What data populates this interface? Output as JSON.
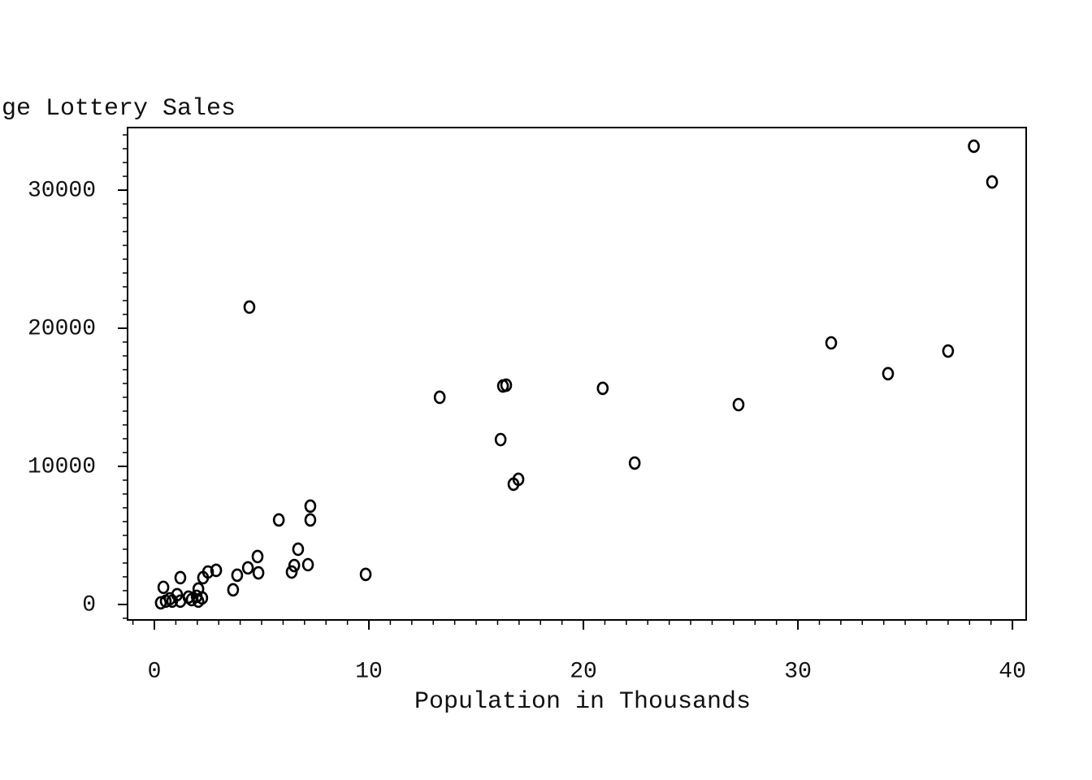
{
  "chart_data": {
    "type": "scatter",
    "y_label": "ge Lottery Sales",
    "x_label": "Population in Thousands",
    "x": [
      38.2,
      39.05,
      4.43,
      31.55,
      37.0,
      34.2,
      20.9,
      13.3,
      16.25,
      16.4,
      27.23,
      16.14,
      22.39,
      16.97,
      16.74,
      7.27,
      5.8,
      7.27,
      6.7,
      4.81,
      4.36,
      7.16,
      6.52,
      6.4,
      4.85,
      9.85,
      2.88,
      2.5,
      3.86,
      2.27,
      1.21,
      3.67,
      0.42,
      2.05,
      1.06,
      1.97,
      2.23,
      1.59,
      1.74,
      1.21,
      0.83,
      0.53,
      0.3,
      2.05,
      0.72
    ],
    "values": [
      33180,
      30590,
      21530,
      18940,
      18350,
      16710,
      15650,
      15000,
      15820,
      15880,
      14470,
      11940,
      10240,
      9060,
      8710,
      7120,
      6120,
      6120,
      4000,
      3470,
      2650,
      2880,
      2820,
      2350,
      2290,
      2180,
      2470,
      2350,
      2120,
      1940,
      1940,
      1060,
      1240,
      1120,
      710,
      590,
      470,
      530,
      350,
      240,
      240,
      240,
      120,
      240,
      410
    ],
    "color": "#000000",
    "xlim": [
      -1.25,
      40.64
    ],
    "xticks": [
      0,
      10,
      20,
      30,
      40
    ],
    "ylim": [
      -1120,
      34530
    ],
    "yticks": [
      0,
      10000,
      20000,
      30000
    ],
    "grid": false
  }
}
